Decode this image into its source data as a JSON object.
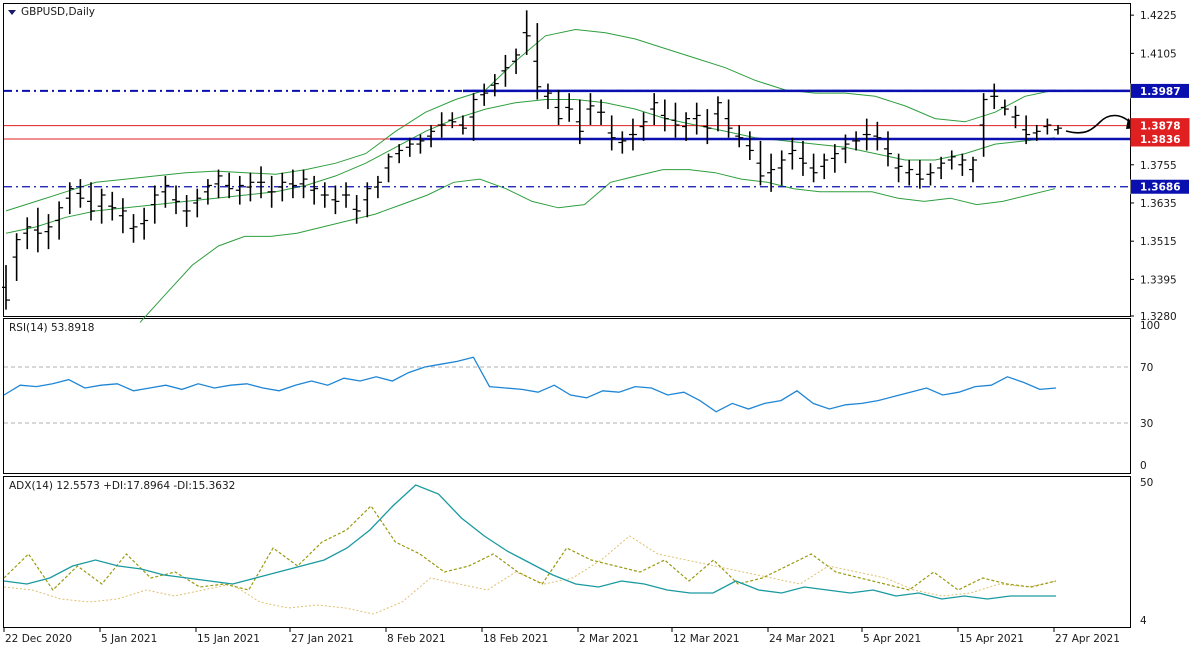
{
  "window": {
    "title": "GBPUSD,Daily",
    "menu_icon": "triangle-down-icon"
  },
  "colors": {
    "bars": "#000000",
    "bollinger": "#2e9e3e",
    "levels": "#0a10b0",
    "red_lines": "#e02020",
    "red_badge": "#e02020",
    "blue_badge": "#0a10b0",
    "rsi": "#1f86d6",
    "adx": "#1a9aa0",
    "plus_di": "#9a9a10",
    "minus_di": "#e0c070",
    "grid_dash": "#b0b0b0"
  },
  "price_axis": {
    "ticks": [
      "1.4225",
      "1.4105",
      "1.3875",
      "1.3755",
      "1.3635",
      "1.3515",
      "1.3395",
      "1.3280"
    ],
    "tick_values": [
      1.4225,
      1.4105,
      1.3875,
      1.3755,
      1.3635,
      1.3515,
      1.3395,
      1.328
    ],
    "badges": [
      {
        "text": "1.3987",
        "value": 1.3987,
        "style": "blue"
      },
      {
        "text": "1.3878",
        "value": 1.3878,
        "style": "red"
      },
      {
        "text": "1.3836",
        "value": 1.3836,
        "style": "red"
      },
      {
        "text": "1.3686",
        "value": 1.3686,
        "style": "blue"
      }
    ]
  },
  "rsi_panel": {
    "label": "RSI(14) 53.8918",
    "ticks": [
      "100",
      "70",
      "30",
      "0"
    ]
  },
  "adx_panel": {
    "label": "ADX(14) 12.5573 +DI:17.8964 -DI:15.3632",
    "ticks": [
      "50",
      "4"
    ]
  },
  "date_axis": {
    "labels": [
      "22 Dec 2020",
      "5 Jan 2021",
      "15 Jan 2021",
      "27 Jan 2021",
      "8 Feb 2021",
      "18 Feb 2021",
      "2 Mar 2021",
      "12 Mar 2021",
      "24 Mar 2021",
      "5 Apr 2021",
      "15 Apr 2021",
      "27 Apr 2021"
    ]
  },
  "chart_data": [
    {
      "type": "ohlc",
      "symbol": "GBPUSD",
      "timeframe": "Daily",
      "ylim": [
        1.328,
        1.426
      ],
      "levels": {
        "resistance_high": 1.3987,
        "resistance_red": 1.3878,
        "support_red": 1.3836,
        "support_low": 1.3686
      },
      "bars": [
        [
          1.344,
          1.33,
          1.333
        ],
        [
          1.354,
          1.339,
          1.352
        ],
        [
          1.359,
          1.349,
          1.356
        ],
        [
          1.362,
          1.348,
          1.354
        ],
        [
          1.36,
          1.349,
          1.356
        ],
        [
          1.364,
          1.352,
          1.362
        ],
        [
          1.37,
          1.36,
          1.368
        ],
        [
          1.371,
          1.362,
          1.365
        ],
        [
          1.37,
          1.358,
          1.361
        ],
        [
          1.368,
          1.357,
          1.366
        ],
        [
          1.367,
          1.358,
          1.362
        ],
        [
          1.365,
          1.354,
          1.361
        ],
        [
          1.36,
          1.351,
          1.356
        ],
        [
          1.362,
          1.352,
          1.358
        ],
        [
          1.369,
          1.357,
          1.366
        ],
        [
          1.372,
          1.362,
          1.369
        ],
        [
          1.369,
          1.36,
          1.364
        ],
        [
          1.366,
          1.356,
          1.361
        ],
        [
          1.368,
          1.359,
          1.365
        ],
        [
          1.371,
          1.363,
          1.369
        ],
        [
          1.374,
          1.365,
          1.372
        ],
        [
          1.373,
          1.365,
          1.368
        ],
        [
          1.372,
          1.363,
          1.369
        ],
        [
          1.373,
          1.364,
          1.37
        ],
        [
          1.375,
          1.365,
          1.37
        ],
        [
          1.372,
          1.362,
          1.367
        ],
        [
          1.373,
          1.364,
          1.37
        ],
        [
          1.374,
          1.365,
          1.369
        ],
        [
          1.374,
          1.365,
          1.371
        ],
        [
          1.372,
          1.363,
          1.368
        ],
        [
          1.37,
          1.362,
          1.366
        ],
        [
          1.369,
          1.36,
          1.364
        ],
        [
          1.37,
          1.362,
          1.366
        ],
        [
          1.366,
          1.357,
          1.361
        ],
        [
          1.37,
          1.359,
          1.368
        ],
        [
          1.372,
          1.365,
          1.37
        ],
        [
          1.379,
          1.37,
          1.378
        ],
        [
          1.382,
          1.376,
          1.38
        ],
        [
          1.384,
          1.378,
          1.382
        ],
        [
          1.385,
          1.379,
          1.383
        ],
        [
          1.388,
          1.381,
          1.386
        ],
        [
          1.392,
          1.384,
          1.388
        ],
        [
          1.392,
          1.387,
          1.389
        ],
        [
          1.391,
          1.385,
          1.387
        ],
        [
          1.398,
          1.383,
          1.396
        ],
        [
          1.401,
          1.394,
          1.398
        ],
        [
          1.404,
          1.397,
          1.401
        ],
        [
          1.41,
          1.4,
          1.406
        ],
        [
          1.412,
          1.404,
          1.41
        ],
        [
          1.424,
          1.41,
          1.416
        ],
        [
          1.42,
          1.396,
          1.4
        ],
        [
          1.401,
          1.393,
          1.398
        ],
        [
          1.399,
          1.388,
          1.39
        ],
        [
          1.398,
          1.389,
          1.393
        ],
        [
          1.396,
          1.382,
          1.386
        ],
        [
          1.398,
          1.388,
          1.394
        ],
        [
          1.396,
          1.388,
          1.392
        ],
        [
          1.391,
          1.38,
          1.384
        ],
        [
          1.386,
          1.379,
          1.383
        ],
        [
          1.39,
          1.38,
          1.385
        ],
        [
          1.392,
          1.383,
          1.389
        ],
        [
          1.398,
          1.388,
          1.395
        ],
        [
          1.396,
          1.386,
          1.39
        ],
        [
          1.395,
          1.384,
          1.388
        ],
        [
          1.392,
          1.383,
          1.39
        ],
        [
          1.395,
          1.385,
          1.391
        ],
        [
          1.393,
          1.382,
          1.387
        ],
        [
          1.397,
          1.386,
          1.395
        ],
        [
          1.396,
          1.384,
          1.387
        ],
        [
          1.388,
          1.381,
          1.384
        ],
        [
          1.386,
          1.377,
          1.38
        ],
        [
          1.383,
          1.369,
          1.372
        ],
        [
          1.379,
          1.367,
          1.374
        ],
        [
          1.38,
          1.369,
          1.377
        ],
        [
          1.384,
          1.374,
          1.38
        ],
        [
          1.383,
          1.372,
          1.376
        ],
        [
          1.379,
          1.37,
          1.373
        ],
        [
          1.379,
          1.371,
          1.377
        ],
        [
          1.382,
          1.373,
          1.379
        ],
        [
          1.385,
          1.376,
          1.382
        ],
        [
          1.386,
          1.38,
          1.383
        ],
        [
          1.39,
          1.38,
          1.385
        ],
        [
          1.389,
          1.38,
          1.384
        ],
        [
          1.386,
          1.375,
          1.379
        ],
        [
          1.379,
          1.37,
          1.375
        ],
        [
          1.377,
          1.369,
          1.374
        ],
        [
          1.377,
          1.368,
          1.371
        ],
        [
          1.376,
          1.369,
          1.373
        ],
        [
          1.378,
          1.371,
          1.376
        ],
        [
          1.38,
          1.374,
          1.378
        ],
        [
          1.379,
          1.372,
          1.377
        ],
        [
          1.378,
          1.37,
          1.377
        ],
        [
          1.398,
          1.378,
          1.396
        ],
        [
          1.401,
          1.393,
          1.397
        ],
        [
          1.396,
          1.391,
          1.393
        ],
        [
          1.394,
          1.387,
          1.391
        ],
        [
          1.391,
          1.382,
          1.385
        ],
        [
          1.388,
          1.383,
          1.386
        ],
        [
          1.39,
          1.385,
          1.388
        ],
        [
          1.388,
          1.385,
          1.387
        ]
      ],
      "bollinger_upper": [
        1.361,
        1.364,
        1.367,
        1.37,
        1.371,
        1.372,
        1.373,
        1.3735,
        1.373,
        1.3725,
        1.374,
        1.376,
        1.379,
        1.386,
        1.392,
        1.396,
        1.399,
        1.408,
        1.416,
        1.418,
        1.417,
        1.415,
        1.412,
        1.409,
        1.406,
        1.402,
        1.399,
        1.398,
        1.398,
        1.397,
        1.394,
        1.39,
        1.389,
        1.392,
        1.397,
        1.399
      ],
      "bollinger_mid": [
        1.354,
        1.356,
        1.359,
        1.361,
        1.362,
        1.363,
        1.364,
        1.365,
        1.366,
        1.367,
        1.369,
        1.372,
        1.376,
        1.381,
        1.386,
        1.39,
        1.393,
        1.395,
        1.396,
        1.396,
        1.395,
        1.393,
        1.39,
        1.388,
        1.386,
        1.384,
        1.383,
        1.382,
        1.381,
        1.379,
        1.377,
        1.377,
        1.379,
        1.382,
        1.383,
        1.384
      ],
      "bollinger_lower": [
        1.326,
        1.335,
        1.344,
        1.35,
        1.353,
        1.353,
        1.354,
        1.356,
        1.358,
        1.36,
        1.363,
        1.366,
        1.37,
        1.371,
        1.368,
        1.364,
        1.362,
        1.363,
        1.37,
        1.372,
        1.374,
        1.374,
        1.373,
        1.371,
        1.37,
        1.368,
        1.367,
        1.367,
        1.367,
        1.365,
        1.364,
        1.365,
        1.363,
        1.364,
        1.366,
        1.368
      ]
    },
    {
      "type": "line",
      "name": "RSI(14)",
      "ylim": [
        0,
        100
      ],
      "series": [
        {
          "name": "RSI",
          "values": [
            50,
            57,
            56,
            58,
            61,
            55,
            57,
            58,
            53,
            55,
            57,
            54,
            58,
            55,
            57,
            58,
            55,
            53,
            57,
            60,
            57,
            62,
            60,
            63,
            60,
            66,
            70,
            72,
            74,
            77,
            56,
            55,
            54,
            52,
            57,
            50,
            48,
            53,
            52,
            56,
            55,
            50,
            52,
            46,
            38,
            44,
            40,
            44,
            46,
            53,
            44,
            40,
            43,
            44,
            46,
            49,
            52,
            55,
            50,
            52,
            56,
            57,
            63,
            59,
            54,
            55
          ]
        }
      ]
    },
    {
      "type": "line",
      "name": "ADX(14)",
      "ylim": [
        4,
        50
      ],
      "series": [
        {
          "name": "ADX",
          "values": [
            17,
            16,
            18,
            22,
            24,
            22,
            21,
            19,
            18,
            17,
            16,
            18,
            20,
            22,
            24,
            28,
            34,
            42,
            49,
            46,
            38,
            32,
            27,
            23,
            19,
            16,
            15,
            17,
            16,
            14,
            13,
            13,
            17,
            14,
            13,
            15,
            14,
            13,
            14,
            12,
            13,
            11,
            12,
            11,
            12,
            12,
            12
          ]
        },
        {
          "name": "+DI",
          "values": [
            18,
            26,
            14,
            22,
            16,
            26,
            18,
            20,
            15,
            16,
            14,
            28,
            22,
            30,
            34,
            42,
            30,
            26,
            20,
            22,
            26,
            20,
            16,
            28,
            24,
            22,
            20,
            24,
            17,
            24,
            16,
            18,
            22,
            26,
            20,
            18,
            16,
            14,
            20,
            14,
            18,
            16,
            15,
            17
          ]
        },
        {
          "name": "-DI",
          "values": [
            15,
            14,
            11,
            10,
            11,
            14,
            12,
            14,
            16,
            10,
            8,
            9,
            8,
            6,
            10,
            18,
            16,
            14,
            20,
            16,
            18,
            24,
            32,
            26,
            24,
            22,
            20,
            18,
            16,
            22,
            20,
            18,
            14,
            12,
            13,
            16,
            15,
            17
          ]
        }
      ]
    }
  ]
}
